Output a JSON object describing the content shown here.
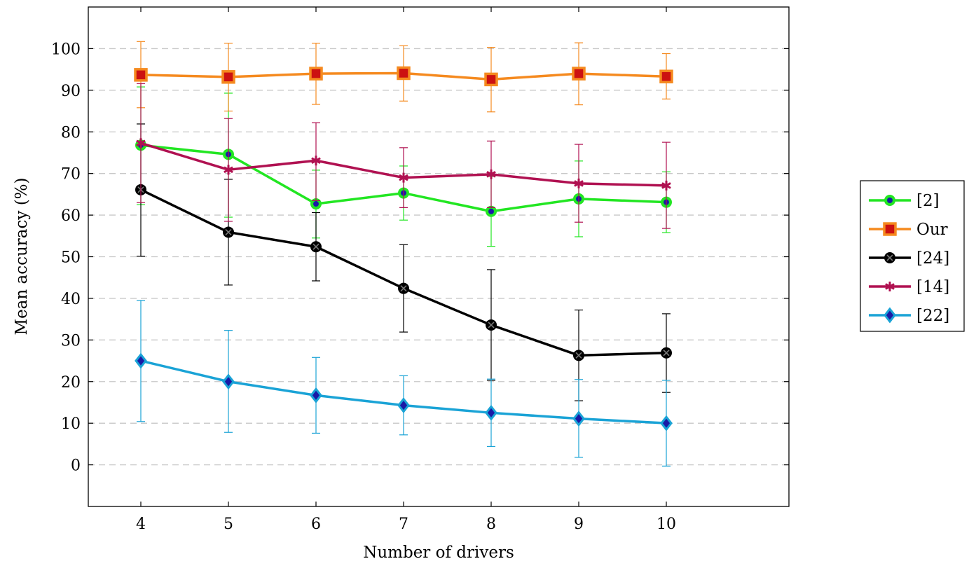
{
  "chart_data": {
    "type": "line",
    "xlabel": "Number of drivers",
    "ylabel": "Mean accuracy (%)",
    "x": [
      4,
      5,
      6,
      7,
      8,
      9,
      10
    ],
    "xlim": [
      3.4,
      11.4
    ],
    "ylim": [
      -10,
      110
    ],
    "yticks": [
      0,
      10,
      20,
      30,
      40,
      50,
      60,
      70,
      80,
      90,
      100
    ],
    "grid": "horizontal-dashed",
    "legend_position": "right",
    "series": [
      {
        "name": "[2]",
        "color": "#22e622",
        "marker": "circle-dot",
        "marker_fill": "#1a1aa6",
        "values": [
          76.8,
          74.6,
          62.7,
          65.3,
          60.9,
          63.9,
          63.1
        ],
        "err_low": [
          62.5,
          59.5,
          54.5,
          58.8,
          52.5,
          54.8,
          55.8
        ],
        "err_high": [
          90.8,
          89.3,
          70.8,
          71.8,
          69.3,
          73.0,
          70.4
        ]
      },
      {
        "name": "Our",
        "color": "#f58a1f",
        "marker": "square",
        "marker_fill": "#cc1111",
        "values": [
          93.7,
          93.2,
          94.0,
          94.1,
          92.6,
          94.0,
          93.3
        ],
        "err_low": [
          85.8,
          85.0,
          86.6,
          87.4,
          84.8,
          86.5,
          87.9
        ],
        "err_high": [
          101.7,
          101.3,
          101.3,
          100.7,
          100.3,
          101.4,
          98.8
        ]
      },
      {
        "name": "[24]",
        "color": "#000000",
        "marker": "circle-cross",
        "marker_fill": "#000000",
        "values": [
          66.1,
          55.9,
          52.4,
          42.4,
          33.6,
          26.3,
          26.9
        ],
        "err_low": [
          50.1,
          43.2,
          44.2,
          31.9,
          20.3,
          15.4,
          17.4
        ],
        "err_high": [
          81.9,
          68.6,
          60.6,
          52.9,
          46.9,
          37.2,
          36.3
        ]
      },
      {
        "name": "[14]",
        "color": "#b01151",
        "marker": "star",
        "marker_fill": "#b01151",
        "values": [
          77.3,
          70.9,
          73.1,
          69.0,
          69.8,
          67.6,
          67.1
        ],
        "err_low": [
          63.0,
          58.5,
          63.5,
          61.8,
          61.8,
          58.3,
          56.8
        ],
        "err_high": [
          91.6,
          83.2,
          82.2,
          76.2,
          77.8,
          77.0,
          77.5
        ]
      },
      {
        "name": "[22]",
        "color": "#1aa3d6",
        "marker": "diamond",
        "marker_fill": "#1a1aa6",
        "values": [
          25.0,
          20.0,
          16.7,
          14.3,
          12.5,
          11.1,
          10.0
        ],
        "err_low": [
          10.4,
          7.8,
          7.6,
          7.2,
          4.4,
          1.8,
          -0.3
        ],
        "err_high": [
          39.5,
          32.3,
          25.8,
          21.4,
          20.6,
          20.5,
          20.3
        ]
      }
    ]
  }
}
